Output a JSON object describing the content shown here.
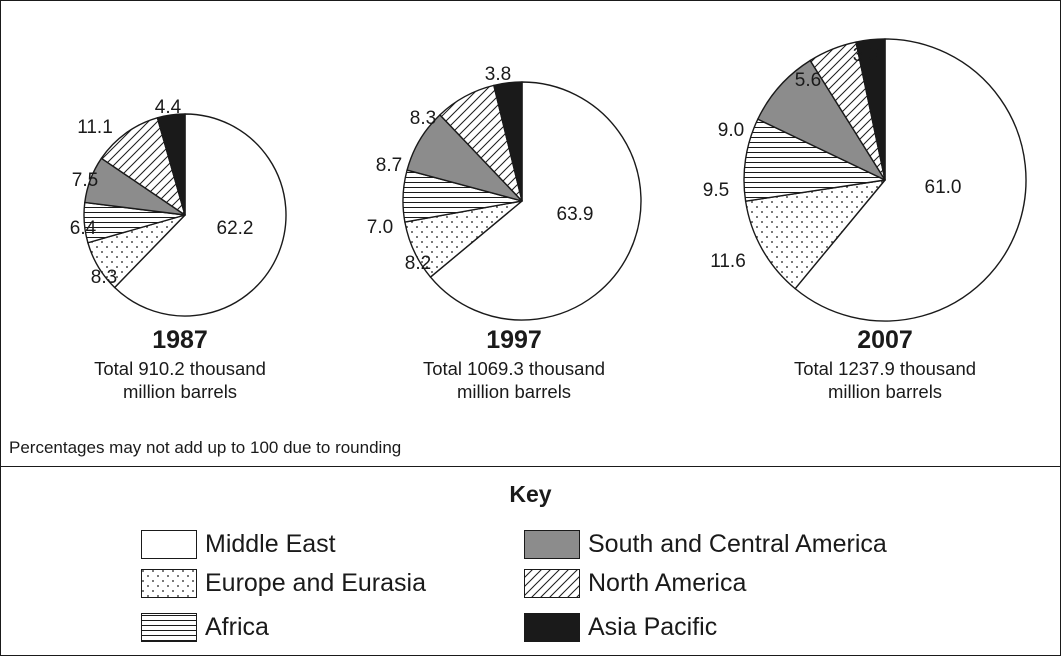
{
  "chart_data": {
    "type": "pie",
    "series_order": [
      "Middle East",
      "Europe and Eurasia",
      "Africa",
      "South and Central America",
      "North America",
      "Asia Pacific"
    ],
    "charts": [
      {
        "year": "1987",
        "total_line1": "Total 910.2 thousand",
        "total_line2": "million barrels",
        "values": [
          62.2,
          8.3,
          6.4,
          7.5,
          11.1,
          4.4
        ],
        "labels": [
          "62.2",
          "8.3",
          "6.4",
          "7.5",
          "11.1",
          "4.4"
        ]
      },
      {
        "year": "1997",
        "total_line1": "Total 1069.3 thousand",
        "total_line2": "million barrels",
        "values": [
          63.9,
          8.2,
          7.0,
          8.7,
          8.3,
          3.8
        ],
        "labels": [
          "63.9",
          "8.2",
          "7.0",
          "8.7",
          "8.3",
          "3.8"
        ]
      },
      {
        "year": "2007",
        "total_line1": "Total 1237.9 thousand",
        "total_line2": "million barrels",
        "values": [
          61.0,
          11.6,
          9.5,
          9.0,
          5.6,
          3.3
        ],
        "labels": [
          "61.0",
          "11.6",
          "9.5",
          "9.0",
          "5.6",
          "3.3"
        ]
      }
    ],
    "note": "Percentages may not add up to 100 due to rounding"
  },
  "key": {
    "title": "Key",
    "items": [
      {
        "label": "Middle East",
        "fill": "white"
      },
      {
        "label": "Europe and Eurasia",
        "fill": "dots"
      },
      {
        "label": "Africa",
        "fill": "hlines"
      },
      {
        "label": "South and Central America",
        "fill": "grey"
      },
      {
        "label": "North America",
        "fill": "diag"
      },
      {
        "label": "Asia Pacific",
        "fill": "black"
      }
    ]
  },
  "colors": {
    "grey": "#8c8c8c",
    "black": "#1a1a1a",
    "stroke": "#1a1a1a"
  }
}
